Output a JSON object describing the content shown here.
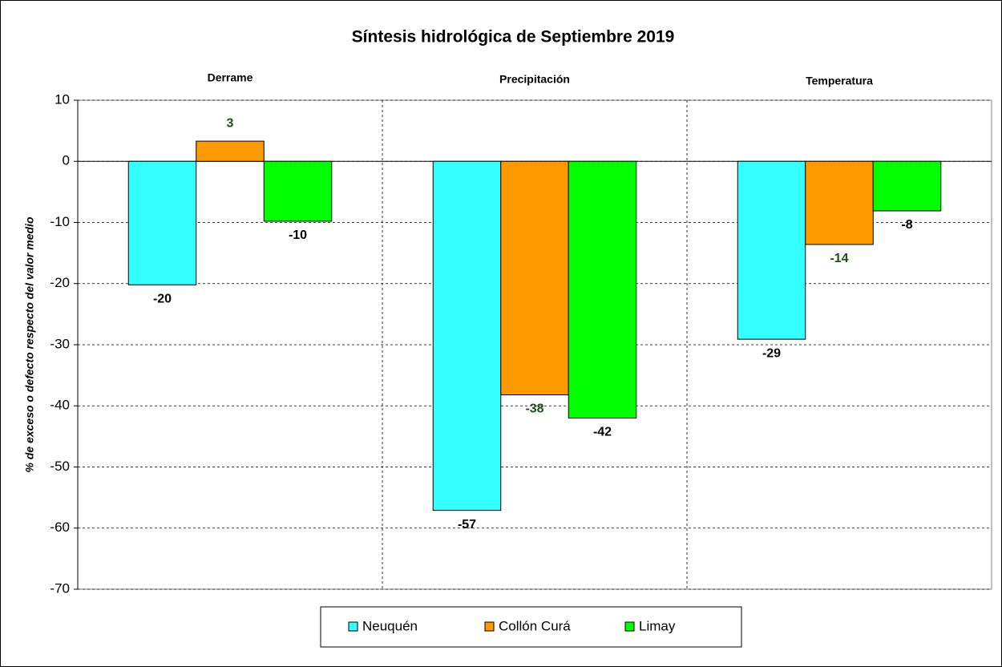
{
  "chart_data": {
    "type": "bar",
    "title": "Síntesis hidrológica de Septiembre 2019",
    "y_label": "% de exceso o defecto respecto del valor medio",
    "categories": [
      "Derrame",
      "Precipitación",
      "Temperatura"
    ],
    "series": [
      {
        "name": "Neuquén",
        "color": "#33ffff",
        "label_color": "#000000",
        "values": [
          -20.2,
          -57.1,
          -29.1
        ],
        "value_labels": [
          "-20",
          "-57",
          "-29"
        ]
      },
      {
        "name": "Collón Curá",
        "color": "#ff9900",
        "label_color": "#1e4d1e",
        "values": [
          3.3,
          -38.2,
          -13.6
        ],
        "value_labels": [
          "3",
          "-38",
          "-14"
        ]
      },
      {
        "name": "Limay",
        "color": "#00ff00",
        "label_color": "#000000",
        "values": [
          -9.8,
          -42.0,
          -8.1
        ],
        "value_labels": [
          "-10",
          "-42",
          "-8"
        ]
      }
    ],
    "ylim": [
      -70,
      10
    ],
    "yticks": [
      -70,
      -60,
      -50,
      -40,
      -30,
      -20,
      -10,
      0,
      10
    ],
    "grid": true,
    "legend": "bottom"
  }
}
